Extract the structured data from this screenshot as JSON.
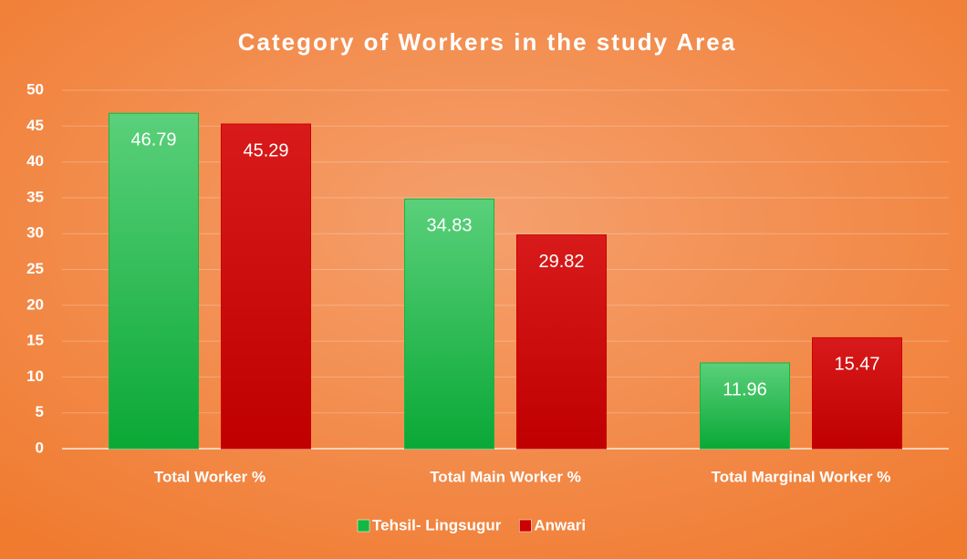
{
  "chart_data": {
    "type": "bar",
    "title": "Category of Workers in the study Area",
    "categories": [
      "Total Worker %",
      "Total Main Worker %",
      "Total Marginal Worker %"
    ],
    "series": [
      {
        "name": "Tehsil- Lingsugur",
        "color": "#12b841",
        "values": [
          46.79,
          34.83,
          11.96
        ]
      },
      {
        "name": "Anwari",
        "color": "#cc0000",
        "values": [
          45.29,
          29.82,
          15.47
        ]
      }
    ],
    "ylim": [
      0,
      50
    ],
    "yticks": [
      0,
      5,
      10,
      15,
      20,
      25,
      30,
      35,
      40,
      45,
      50
    ],
    "grid": true,
    "legend": "bottom"
  }
}
